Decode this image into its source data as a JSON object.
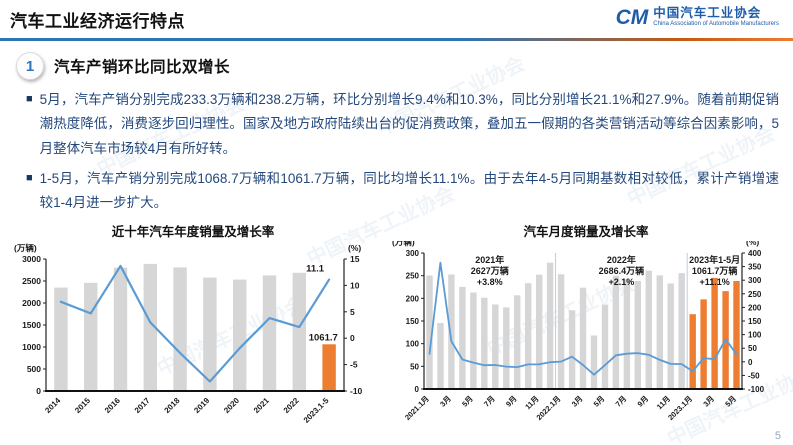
{
  "header": {
    "title": "汽车工业经济运行特点",
    "logo": {
      "mark": "CM",
      "name_cn": "中国汽车工业协会",
      "name_en": "China Association of Automobile Manufacturers"
    }
  },
  "section": {
    "number": "1",
    "title": "汽车产销环比同比双增长"
  },
  "bullets": [
    "5月，汽车产销分别完成233.3万辆和238.2万辆，环比分别增长9.4%和10.3%，同比分别增长21.1%和27.9%。随着前期促销潮热度降低，消费逐步回归理性。国家及地方政府陆续出台的促消费政策，叠加五一假期的各类营销活动等综合因素影响，5月整体汽车市场较4月有所好转。",
    "1-5月，汽车产销分别完成1068.7万辆和1061.7万辆，同比均增长11.1%。由于去年4-5月同期基数相对较低，累计产销增速较1-4月进一步扩大。"
  ],
  "watermark": "中国汽车工业协会",
  "page_number": "5",
  "colors": {
    "accent_blue": "#2e75b6",
    "orange": "#ed7d31",
    "gray_bar": "#d6d6d6",
    "line_blue": "#5b9bd5",
    "body_text": "#24487c"
  },
  "chart_data": [
    {
      "type": "bar+line",
      "title": "近十年汽车年度销量及增长率",
      "left_axis_label": "(万辆)",
      "right_axis_label": "(%)",
      "categories": [
        "2014",
        "2015",
        "2016",
        "2017",
        "2018",
        "2019",
        "2020",
        "2021",
        "2022",
        "2023.1-5"
      ],
      "bars": [
        2349,
        2460,
        2803,
        2888,
        2808,
        2577,
        2531,
        2628,
        2686,
        1061.7
      ],
      "line": [
        6.9,
        4.7,
        13.7,
        3.0,
        -2.8,
        -8.2,
        -1.9,
        3.8,
        2.1,
        11.1
      ],
      "highlight_from": 9,
      "left_ylim": [
        0,
        3000
      ],
      "left_ticks": [
        0,
        500,
        1000,
        1500,
        2000,
        2500,
        3000
      ],
      "right_ylim": [
        -10,
        15
      ],
      "right_ticks": [
        -10,
        -5,
        0,
        5,
        10,
        15
      ],
      "x_ticks": [
        {
          "i": 0,
          "label": "2014"
        },
        {
          "i": 1,
          "label": "2015"
        },
        {
          "i": 2,
          "label": "2016"
        },
        {
          "i": 3,
          "label": "2017"
        },
        {
          "i": 4,
          "label": "2018"
        },
        {
          "i": 5,
          "label": "2019"
        },
        {
          "i": 6,
          "label": "2020"
        },
        {
          "i": 7,
          "label": "2021"
        },
        {
          "i": 8,
          "label": "2022"
        },
        {
          "i": 9,
          "label": "2023.1-5"
        }
      ],
      "last_line_label": "11.1",
      "last_bar_label": "1061.7",
      "grid": false,
      "legend": "none"
    },
    {
      "type": "bar+line",
      "title": "汽车月度销量及增长率",
      "left_axis_label": "(万辆)",
      "right_axis_label": "(%)",
      "categories": [
        "2021.1",
        "2021.2",
        "2021.3",
        "2021.4",
        "2021.5",
        "2021.6",
        "2021.7",
        "2021.8",
        "2021.9",
        "2021.10",
        "2021.11",
        "2021.12",
        "2022.1",
        "2022.2",
        "2022.3",
        "2022.4",
        "2022.5",
        "2022.6",
        "2022.7",
        "2022.8",
        "2022.9",
        "2022.10",
        "2022.11",
        "2022.12",
        "2023.1",
        "2023.2",
        "2023.3",
        "2023.4",
        "2023.5"
      ],
      "bars": [
        250.3,
        145.5,
        252.6,
        225.2,
        212.8,
        201.5,
        186.4,
        179.9,
        206.7,
        233.3,
        252.2,
        278.6,
        253.1,
        173.7,
        223.4,
        118.1,
        186.2,
        250.2,
        242.0,
        238.3,
        261.0,
        250.5,
        232.8,
        255.6,
        164.9,
        197.6,
        245.1,
        215.9,
        238.2
      ],
      "line": [
        29.5,
        364.8,
        74.9,
        8.6,
        -3.1,
        -12.4,
        -11.9,
        -17.8,
        -19.6,
        -9.4,
        -9.1,
        -1.6,
        0.9,
        18.7,
        -11.7,
        -47.6,
        -12.6,
        23.8,
        29.7,
        32.1,
        25.7,
        6.9,
        -7.9,
        -8.4,
        -35.0,
        13.5,
        9.7,
        82.7,
        27.9
      ],
      "highlight_from": 24,
      "left_ylim": [
        0,
        300
      ],
      "left_ticks": [
        0,
        50,
        100,
        150,
        200,
        250,
        300
      ],
      "right_ylim": [
        -100,
        400
      ],
      "right_ticks": [
        -100,
        -50,
        0,
        50,
        100,
        150,
        200,
        250,
        300,
        350,
        400
      ],
      "x_ticks": [
        {
          "i": 0,
          "label": "2021.1月"
        },
        {
          "i": 2,
          "label": "3月"
        },
        {
          "i": 4,
          "label": "5月"
        },
        {
          "i": 6,
          "label": "7月"
        },
        {
          "i": 8,
          "label": "9月"
        },
        {
          "i": 10,
          "label": "11月"
        },
        {
          "i": 12,
          "label": "2022.1月"
        },
        {
          "i": 14,
          "label": "3月"
        },
        {
          "i": 16,
          "label": "5月"
        },
        {
          "i": 18,
          "label": "7月"
        },
        {
          "i": 20,
          "label": "9月"
        },
        {
          "i": 22,
          "label": "11月"
        },
        {
          "i": 24,
          "label": "2023.1月"
        },
        {
          "i": 26,
          "label": "3月"
        },
        {
          "i": 28,
          "label": "5月"
        }
      ],
      "group_separators": [
        12,
        24
      ],
      "groups": [
        {
          "title": "2021年",
          "total": "2627万辆",
          "growth": "+3.8%"
        },
        {
          "title": "2022年",
          "total": "2686.4万辆",
          "growth": "+2.1%"
        },
        {
          "title": "2023年1-5月",
          "total": "1061.7万辆",
          "growth": "+11.1%"
        }
      ],
      "grid": false,
      "legend": "none"
    }
  ]
}
